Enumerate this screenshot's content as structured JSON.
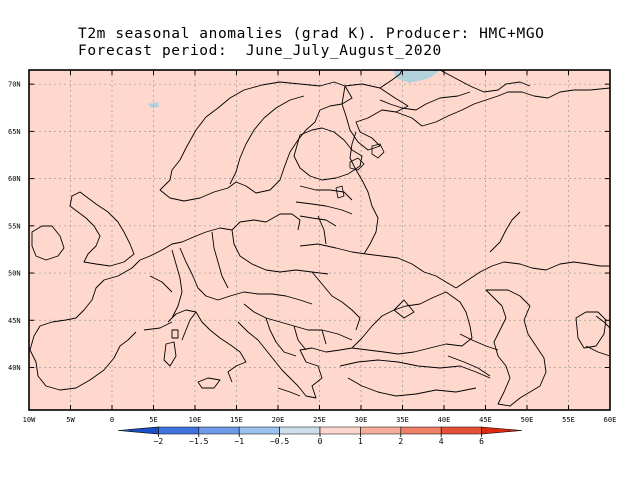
{
  "title": {
    "line1": "T2m seasonal anomalies (grad K). Producer: HMC+MGO",
    "line2": "Forecast period:  June_July_August_2020"
  },
  "map": {
    "lon_range": [
      -10,
      60
    ],
    "lat_range": [
      35.5,
      71.5
    ],
    "lat_labels": [
      {
        "lat": 70,
        "label": "70N"
      },
      {
        "lat": 65,
        "label": "65N"
      },
      {
        "lat": 60,
        "label": "60N"
      },
      {
        "lat": 55,
        "label": "55N"
      },
      {
        "lat": 50,
        "label": "50N"
      },
      {
        "lat": 45,
        "label": "45N"
      },
      {
        "lat": 40,
        "label": "40N"
      }
    ],
    "lon_labels": [
      {
        "lon": -10,
        "label": "10W"
      },
      {
        "lon": -5,
        "label": "5W"
      },
      {
        "lon": 0,
        "label": "0"
      },
      {
        "lon": 5,
        "label": "5E"
      },
      {
        "lon": 10,
        "label": "10E"
      },
      {
        "lon": 15,
        "label": "15E"
      },
      {
        "lon": 20,
        "label": "20E"
      },
      {
        "lon": 25,
        "label": "25E"
      },
      {
        "lon": 30,
        "label": "30E"
      },
      {
        "lon": 35,
        "label": "35E"
      },
      {
        "lon": 40,
        "label": "40E"
      },
      {
        "lon": 45,
        "label": "45E"
      },
      {
        "lon": 50,
        "label": "50E"
      },
      {
        "lon": 55,
        "label": "55E"
      },
      {
        "lon": 60,
        "label": "60E"
      }
    ],
    "anomaly_fill_color": "#fed7cd",
    "cool_patch_color": "#b4d2dc"
  },
  "colorbar": {
    "labels": [
      "−2",
      "−1.5",
      "−1",
      "−0.5",
      "0",
      "1",
      "2",
      "4",
      "6"
    ],
    "colors": [
      "#1a4fc8",
      "#3f74e0",
      "#6f9ae8",
      "#9cc2f0",
      "#cde0ea",
      "#fcd7cd",
      "#f4ad9a",
      "#ee8068",
      "#e65038",
      "#dc2a10"
    ]
  }
}
